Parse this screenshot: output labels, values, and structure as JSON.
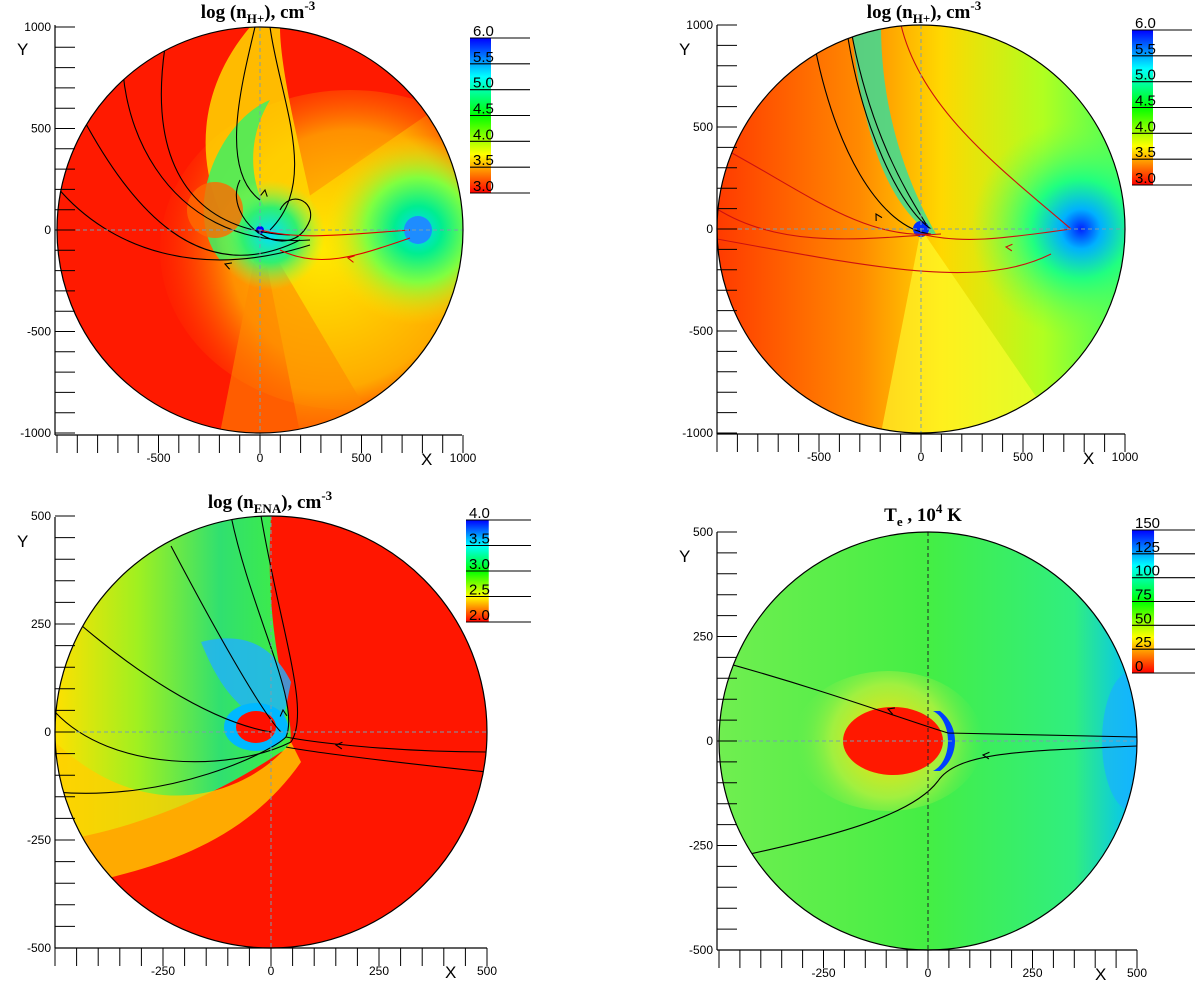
{
  "chart_data": [
    {
      "type": "heatmap",
      "title": "log (nH+), cm-3",
      "title_main": "log (n",
      "title_sub": "H+",
      "title_rest": "), cm",
      "title_sup": "-3",
      "xlabel": "X",
      "ylabel": "Y",
      "xlim": [
        -1000,
        1000
      ],
      "ylim": [
        -1000,
        1000
      ],
      "xticks": [
        -500,
        0,
        500,
        1000
      ],
      "yticks": [
        -1000,
        -500,
        0,
        500,
        1000
      ],
      "grid": false,
      "colorbar": {
        "min": 3.0,
        "max": 6.0,
        "ticks": [
          "3.0",
          "3.5",
          "4.0",
          "4.5",
          "5.0",
          "5.5",
          "6.0"
        ],
        "placement": "top-right",
        "colors": [
          "#ff0000",
          "#ffff00",
          "#00ff00",
          "#00ffff",
          "#0000ff"
        ]
      },
      "dense_region": {
        "x": 780,
        "y": 0,
        "value": 5.0
      },
      "center_value": 6.0,
      "background_value": 3.0
    },
    {
      "type": "heatmap",
      "title": "log (nH+), cm-3",
      "title_main": "log (n",
      "title_sub": "H+",
      "title_rest": "), cm",
      "title_sup": "-3",
      "xlabel": "X",
      "ylabel": "Y",
      "xlim": [
        -1000,
        1000
      ],
      "ylim": [
        -1000,
        1000
      ],
      "xticks": [
        -500,
        0,
        500,
        1000
      ],
      "yticks": [
        -1000,
        -500,
        0,
        500,
        1000
      ],
      "grid": false,
      "colorbar": {
        "min": 3.0,
        "max": 6.0,
        "ticks": [
          "3.0",
          "3.5",
          "4.0",
          "4.5",
          "5.0",
          "5.5",
          "6.0"
        ],
        "placement": "top-right",
        "colors": [
          "#ff0000",
          "#ffff00",
          "#00ff00",
          "#00ffff",
          "#0000ff"
        ]
      },
      "dense_region": {
        "x": 780,
        "y": 0,
        "value": 6.0
      },
      "center_value": 6.0,
      "background_value": 3.8
    },
    {
      "type": "heatmap",
      "title": "log (nENA), cm-3",
      "title_main": "log (n",
      "title_sub": "ENA",
      "title_rest": "), cm",
      "title_sup": "-3",
      "xlabel": "X",
      "ylabel": "Y",
      "xlim": [
        -500,
        500
      ],
      "ylim": [
        -500,
        500
      ],
      "xticks": [
        -250,
        0,
        250,
        500
      ],
      "yticks": [
        -500,
        -250,
        0,
        250,
        500
      ],
      "grid": false,
      "colorbar": {
        "min": 2.0,
        "max": 4.0,
        "ticks": [
          "2.0",
          "2.5",
          "3.0",
          "3.5",
          "4.0"
        ],
        "placement": "top-right",
        "colors": [
          "#ff0000",
          "#ffff00",
          "#00ff00",
          "#00ffff",
          "#0000ff"
        ]
      },
      "center_value": 2.0,
      "background_value": 2.0
    },
    {
      "type": "heatmap",
      "title": "Te , 10^4 K",
      "title_main": "T",
      "title_sub": "e",
      "title_rest": " , 10",
      "title_sup": "4",
      "title_tail": " K",
      "xlabel": "X",
      "ylabel": "Y",
      "xlim": [
        -500,
        500
      ],
      "ylim": [
        -500,
        500
      ],
      "xticks": [
        -250,
        0,
        250,
        500
      ],
      "yticks": [
        -500,
        -250,
        0,
        250,
        500
      ],
      "grid": false,
      "colorbar": {
        "min": 0,
        "max": 150,
        "ticks": [
          "0",
          "25",
          "50",
          "75",
          "100",
          "125",
          "150"
        ],
        "placement": "top-right",
        "colors": [
          "#ff0000",
          "#ffff00",
          "#00ff00",
          "#00ffff",
          "#0000ff"
        ]
      },
      "center_value": 0,
      "background_value": 75
    }
  ]
}
